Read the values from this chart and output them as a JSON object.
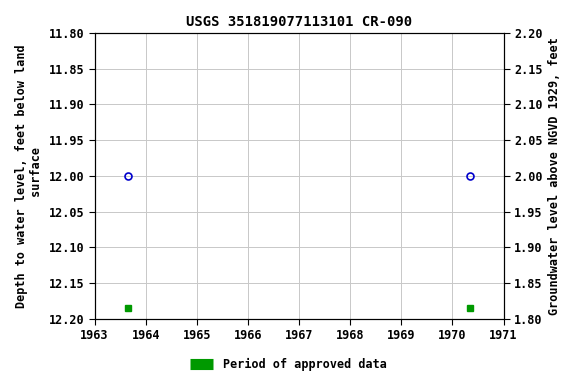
{
  "title": "USGS 351819077113101 CR-090",
  "ylabel_left": "Depth to water level, feet below land\n surface",
  "ylabel_right": "Groundwater level above NGVD 1929, feet",
  "xlim": [
    1963,
    1971
  ],
  "ylim_left": [
    11.8,
    12.2
  ],
  "ylim_right": [
    1.8,
    2.2
  ],
  "xticks": [
    1963,
    1964,
    1965,
    1966,
    1967,
    1968,
    1969,
    1970,
    1971
  ],
  "yticks_left": [
    11.8,
    11.85,
    11.9,
    11.95,
    12.0,
    12.05,
    12.1,
    12.15,
    12.2
  ],
  "yticks_right": [
    2.2,
    2.15,
    2.1,
    2.05,
    2.0,
    1.95,
    1.9,
    1.85,
    1.8
  ],
  "blue_circle_points": [
    [
      1963.65,
      12.0
    ],
    [
      1970.35,
      12.0
    ]
  ],
  "green_square_points": [
    [
      1963.65,
      12.185
    ],
    [
      1970.35,
      12.185
    ]
  ],
  "circle_color": "#0000cc",
  "square_color": "#009900",
  "background_color": "#ffffff",
  "grid_color": "#c8c8c8",
  "title_fontsize": 10,
  "axis_label_fontsize": 8.5,
  "tick_fontsize": 8.5,
  "legend_label": "Period of approved data",
  "font_family": "DejaVu Sans Mono"
}
